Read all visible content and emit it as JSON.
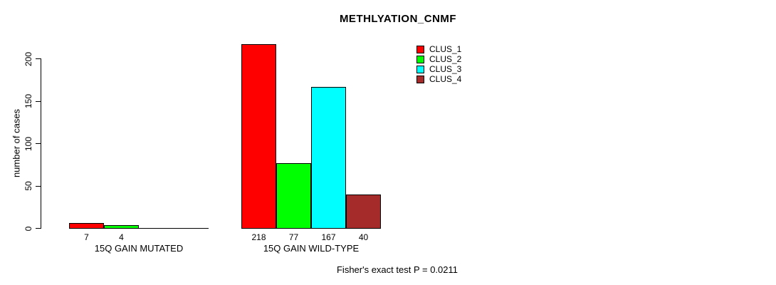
{
  "chart_data": {
    "type": "bar",
    "title": "METHLYATION_CNMF",
    "xlabel": "",
    "ylabel": "number of cases",
    "ylim": [
      0,
      200
    ],
    "yticks": [
      0,
      50,
      100,
      150,
      200
    ],
    "grid": false,
    "legend_position": "top-right",
    "categories": [
      "15Q GAIN MUTATED",
      "15Q GAIN WILD-TYPE"
    ],
    "series": [
      {
        "name": "CLUS_1",
        "color": "#FF0000",
        "values": [
          7,
          218
        ]
      },
      {
        "name": "CLUS_2",
        "color": "#00FF00",
        "values": [
          4,
          77
        ]
      },
      {
        "name": "CLUS_3",
        "color": "#00FFFF",
        "values": [
          0,
          167
        ]
      },
      {
        "name": "CLUS_4",
        "color": "#A52A2A",
        "values": [
          0,
          40
        ]
      }
    ],
    "bar_value_labels": [
      [
        "7",
        "4"
      ],
      [
        "218",
        "77",
        "167",
        "40"
      ]
    ],
    "zero_bars_drawn_as_baseline": true,
    "annotation": "Fisher's exact test P = 0.0211"
  }
}
